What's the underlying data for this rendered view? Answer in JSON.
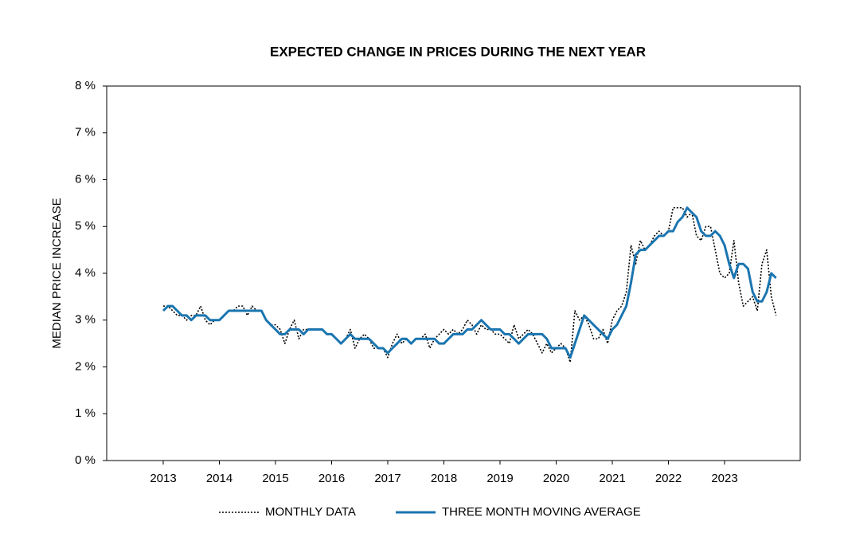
{
  "chart_data": {
    "type": "line",
    "title": "EXPECTED CHANGE IN PRICES DURING THE NEXT YEAR",
    "y_label": "MEDIAN PRICE INCREASE",
    "categories": [
      "2013",
      null,
      null,
      null,
      null,
      null,
      null,
      null,
      null,
      null,
      null,
      null,
      "2014",
      null,
      null,
      null,
      null,
      null,
      null,
      null,
      null,
      null,
      null,
      null,
      "2015",
      null,
      null,
      null,
      null,
      null,
      null,
      null,
      null,
      null,
      null,
      null,
      "2016",
      null,
      null,
      null,
      null,
      null,
      null,
      null,
      null,
      null,
      null,
      null,
      "2017",
      null,
      null,
      null,
      null,
      null,
      null,
      null,
      null,
      null,
      null,
      null,
      "2018",
      null,
      null,
      null,
      null,
      null,
      null,
      null,
      null,
      null,
      null,
      null,
      "2019",
      null,
      null,
      null,
      null,
      null,
      null,
      null,
      null,
      null,
      null,
      null,
      "2020",
      null,
      null,
      null,
      null,
      null,
      null,
      null,
      null,
      null,
      null,
      null,
      "2021",
      null,
      null,
      null,
      null,
      null,
      null,
      null,
      null,
      null,
      null,
      null,
      "2022",
      null,
      null,
      null,
      null,
      null,
      null,
      null,
      null,
      null,
      null,
      null,
      "2023",
      null,
      null,
      null,
      null,
      null,
      null,
      null,
      null,
      null,
      null,
      null
    ],
    "series": [
      {
        "name": "MONTHLY DATA",
        "color": "#000000",
        "dashed": true,
        "values": [
          3.3,
          3.3,
          3.2,
          3.1,
          3.1,
          3.0,
          3.1,
          3.1,
          3.3,
          3.0,
          2.9,
          3.0,
          3.0,
          3.1,
          3.2,
          3.2,
          3.3,
          3.3,
          3.1,
          3.3,
          3.2,
          3.2,
          3.0,
          2.9,
          2.9,
          2.8,
          2.5,
          2.8,
          3.0,
          2.6,
          2.8,
          2.8,
          2.8,
          2.8,
          2.8,
          2.7,
          2.7,
          2.6,
          2.5,
          2.6,
          2.8,
          2.4,
          2.6,
          2.7,
          2.6,
          2.4,
          2.4,
          2.4,
          2.2,
          2.5,
          2.7,
          2.5,
          2.6,
          2.5,
          2.6,
          2.6,
          2.7,
          2.4,
          2.6,
          2.7,
          2.8,
          2.7,
          2.8,
          2.7,
          2.8,
          3.0,
          2.9,
          2.7,
          2.9,
          2.8,
          2.8,
          2.7,
          2.7,
          2.6,
          2.5,
          2.9,
          2.6,
          2.7,
          2.8,
          2.7,
          2.5,
          2.3,
          2.5,
          2.3,
          2.4,
          2.5,
          2.4,
          2.1,
          3.2,
          3.0,
          3.1,
          2.9,
          2.6,
          2.6,
          2.8,
          2.5,
          3.0,
          3.2,
          3.3,
          3.6,
          4.6,
          4.2,
          4.7,
          4.5,
          4.6,
          4.8,
          4.9,
          4.8,
          4.9,
          5.4,
          5.4,
          5.4,
          5.2,
          5.3,
          4.8,
          4.7,
          5.0,
          5.0,
          4.5,
          4.0,
          3.9,
          4.0,
          4.7,
          3.8,
          3.3,
          3.4,
          3.5,
          3.2,
          4.2,
          4.5,
          3.5,
          3.1
        ]
      },
      {
        "name": "THREE MONTH MOVING AVERAGE",
        "color": "#1a75b0",
        "dashed": false,
        "values": [
          3.2,
          3.3,
          3.3,
          3.2,
          3.1,
          3.1,
          3.0,
          3.1,
          3.1,
          3.1,
          3.0,
          3.0,
          3.0,
          3.1,
          3.2,
          3.2,
          3.2,
          3.2,
          3.2,
          3.2,
          3.2,
          3.2,
          3.0,
          2.9,
          2.8,
          2.7,
          2.7,
          2.8,
          2.8,
          2.8,
          2.7,
          2.8,
          2.8,
          2.8,
          2.8,
          2.7,
          2.7,
          2.6,
          2.5,
          2.6,
          2.7,
          2.6,
          2.6,
          2.6,
          2.6,
          2.5,
          2.4,
          2.4,
          2.3,
          2.4,
          2.5,
          2.6,
          2.6,
          2.5,
          2.6,
          2.6,
          2.6,
          2.6,
          2.6,
          2.5,
          2.5,
          2.6,
          2.7,
          2.7,
          2.7,
          2.8,
          2.8,
          2.9,
          3.0,
          2.9,
          2.8,
          2.8,
          2.8,
          2.7,
          2.7,
          2.6,
          2.5,
          2.6,
          2.7,
          2.7,
          2.7,
          2.7,
          2.6,
          2.4,
          2.4,
          2.4,
          2.4,
          2.2,
          2.5,
          2.8,
          3.1,
          3.0,
          2.9,
          2.8,
          2.7,
          2.6,
          2.8,
          2.9,
          3.1,
          3.3,
          3.8,
          4.4,
          4.5,
          4.5,
          4.6,
          4.7,
          4.8,
          4.8,
          4.9,
          4.9,
          5.1,
          5.2,
          5.4,
          5.3,
          5.2,
          4.9,
          4.8,
          4.8,
          4.9,
          4.8,
          4.6,
          4.2,
          3.9,
          4.2,
          4.2,
          4.1,
          3.6,
          3.4,
          3.4,
          3.6,
          4.0,
          3.9
        ]
      }
    ],
    "ylim": [
      0,
      8
    ],
    "yticks": [
      {
        "value": 0,
        "label": "0 %"
      },
      {
        "value": 1,
        "label": "1 %"
      },
      {
        "value": 2,
        "label": "2 %"
      },
      {
        "value": 3,
        "label": "3 %"
      },
      {
        "value": 4,
        "label": "4 %"
      },
      {
        "value": 5,
        "label": "5 %"
      },
      {
        "value": 6,
        "label": "6 %"
      },
      {
        "value": 7,
        "label": "7 %"
      },
      {
        "value": 8,
        "label": "8 %"
      }
    ],
    "grid": false,
    "legend": "bottom"
  }
}
